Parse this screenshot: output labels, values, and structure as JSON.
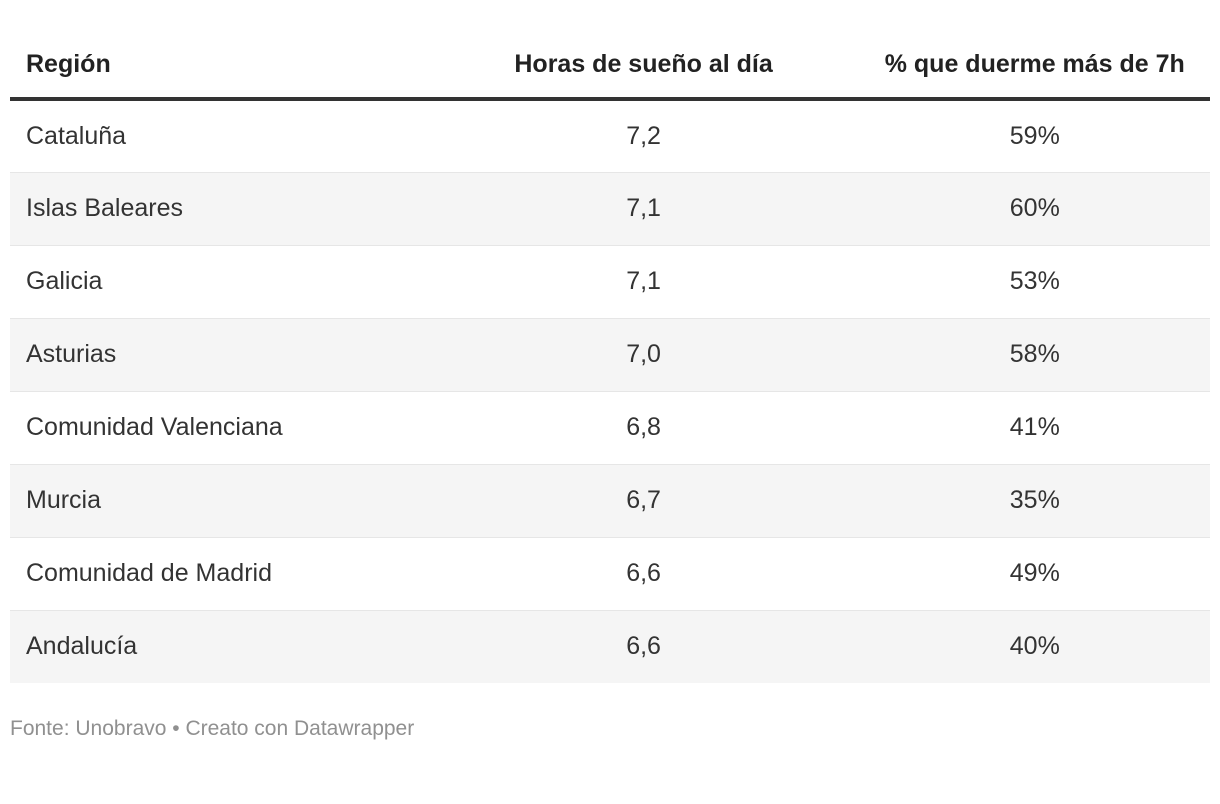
{
  "chart_data": {
    "type": "table",
    "columns": [
      "Región",
      "Horas de sueño al día",
      "% que duerme más de 7h"
    ],
    "rows": [
      [
        "Cataluña",
        "7,2",
        "59%"
      ],
      [
        "Islas Baleares",
        "7,1",
        "60%"
      ],
      [
        "Galicia",
        "7,1",
        "53%"
      ],
      [
        "Asturias",
        "7,0",
        "58%"
      ],
      [
        "Comunidad Valenciana",
        "6,8",
        "41%"
      ],
      [
        "Murcia",
        "6,7",
        "35%"
      ],
      [
        "Comunidad de Madrid",
        "6,6",
        "49%"
      ],
      [
        "Andalucía",
        "6,6",
        "40%"
      ]
    ],
    "column_alignment": [
      "left",
      "center",
      "center"
    ],
    "striped_rows": "even",
    "layout_hints": {
      "header_border": "4px solid dark",
      "row_border": "1px light"
    }
  },
  "footer": {
    "text": "Fonte: Unobravo • Creato con Datawrapper"
  },
  "colors": {
    "header_text": "#222222",
    "body_text": "#333333",
    "header_border": "#333333",
    "row_border": "#e6e6e6",
    "stripe_background": "#f5f5f5",
    "footer_text": "#909090",
    "page_background": "#ffffff"
  }
}
